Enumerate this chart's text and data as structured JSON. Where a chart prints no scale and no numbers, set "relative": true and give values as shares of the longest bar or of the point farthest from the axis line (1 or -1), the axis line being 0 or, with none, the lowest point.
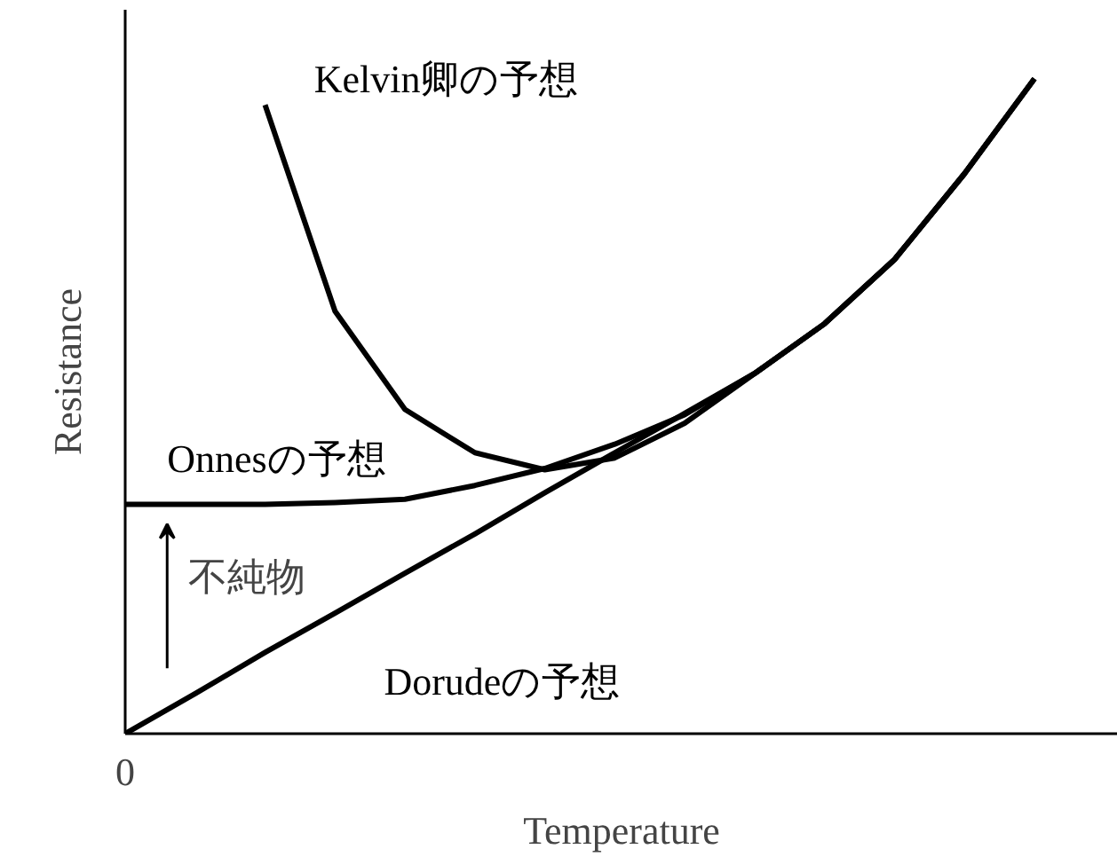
{
  "chart_data": {
    "type": "line",
    "relative": true,
    "xlabel": "Temperature",
    "ylabel": "Resistance",
    "categories": [
      null,
      null,
      null,
      null,
      null,
      null,
      null,
      null,
      null,
      null,
      null,
      null,
      null,
      null
    ],
    "series": [
      {
        "name": "Kelvin卿の予想",
        "color": "#000000",
        "values": [
          null,
          null,
          0.96,
          0.645,
          0.495,
          0.429,
          0.403,
          0.421,
          0.474,
          0.55,
          0.626,
          0.724,
          0.855,
          1
        ]
      },
      {
        "name": "Onnesの予想",
        "color": "#000000",
        "values": [
          0.35,
          0.35,
          0.35,
          0.353,
          0.358,
          0.379,
          0.405,
          0.442,
          0.487,
          0.55,
          0.626,
          0.724,
          0.855,
          1
        ]
      },
      {
        "name": "Dorudeの予想",
        "color": "#000000",
        "values": [
          0,
          0.061,
          0.124,
          0.184,
          0.245,
          0.305,
          0.368,
          0.429,
          0.489,
          0.55,
          0.626,
          0.724,
          0.855,
          1
        ]
      }
    ],
    "annotations": [
      "不純物",
      "0"
    ],
    "grid": false,
    "marker": "none",
    "line_style": "solid"
  }
}
